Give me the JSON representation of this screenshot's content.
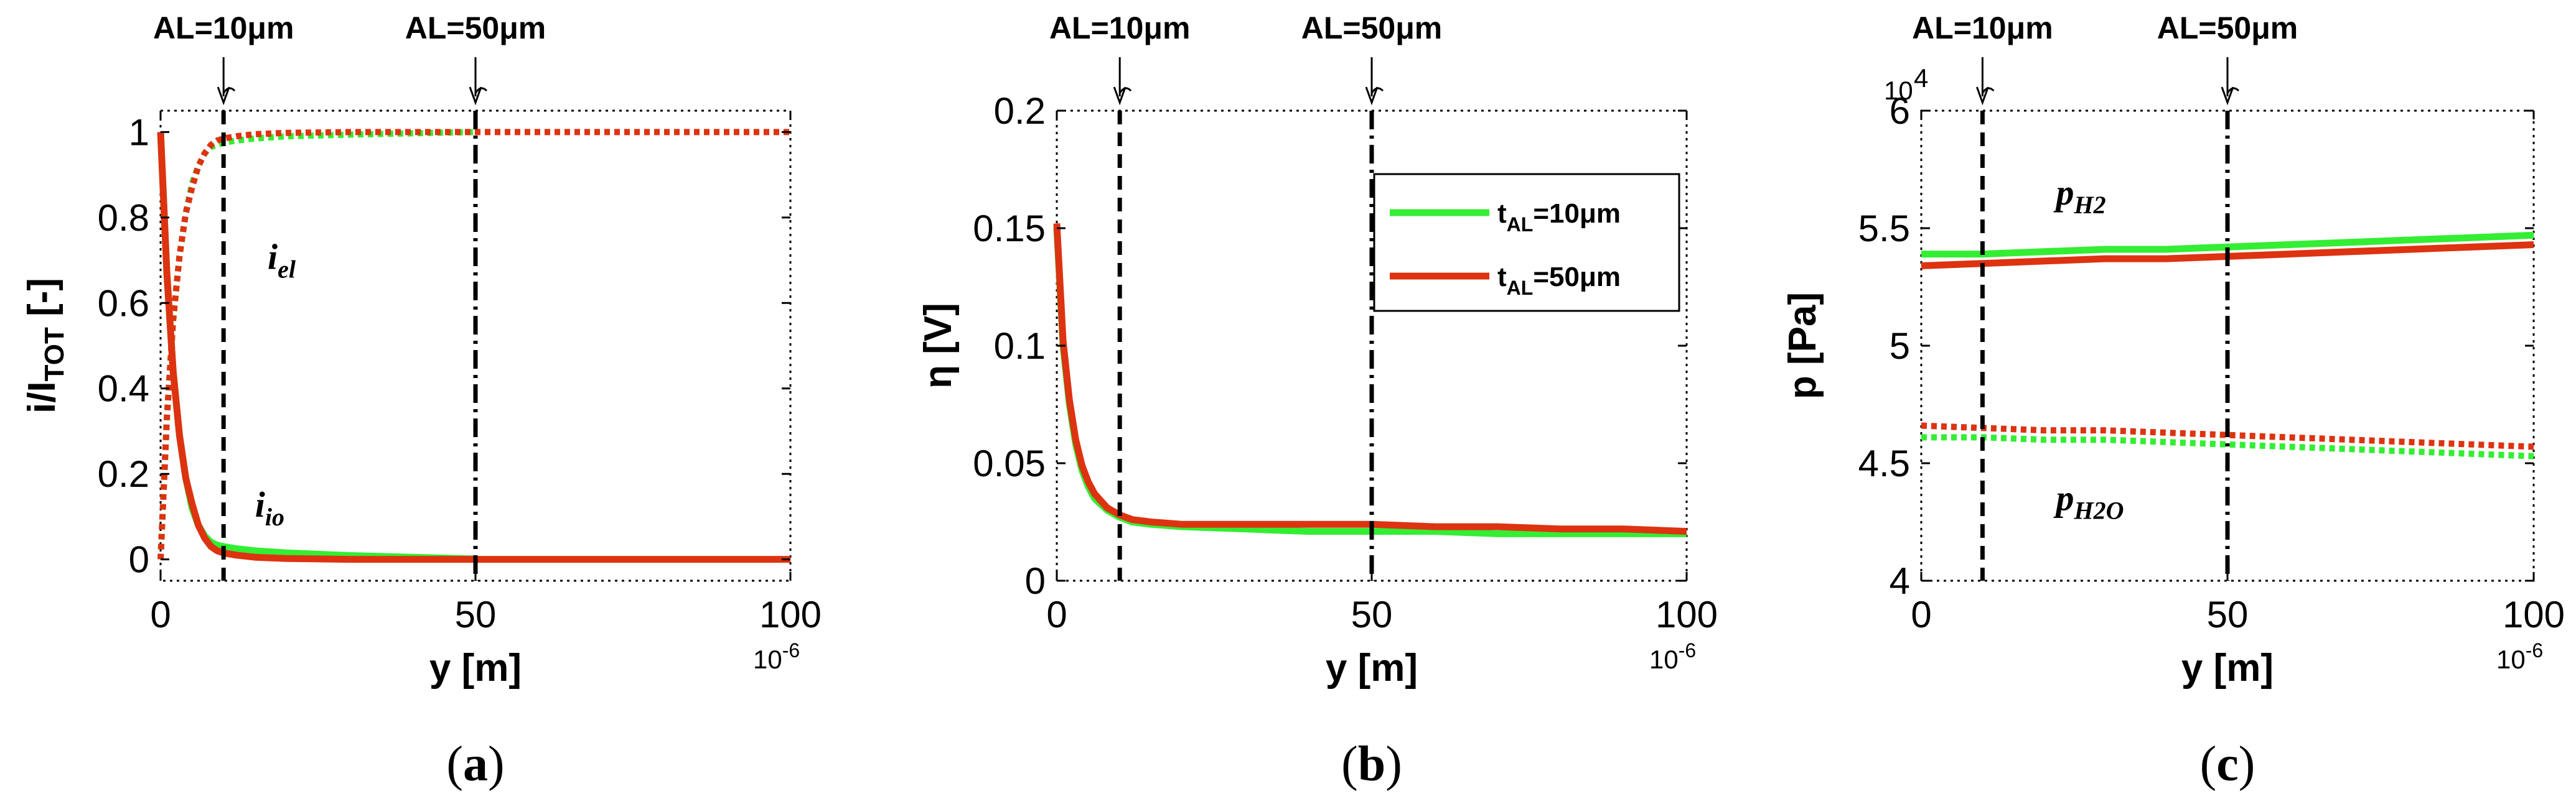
{
  "chart_data": [
    {
      "type": "line",
      "panel_label": "(a)",
      "xlabel": "y [m]",
      "x_exponent": "10-6",
      "ylabel": "i/I_TOT [-]",
      "ylabel_main": "i/I",
      "ylabel_sub": "TOT",
      "ylabel_tail": " [-]",
      "xlim": [
        0,
        100
      ],
      "ylim": [
        -0.05,
        1.05
      ],
      "xticks": [
        0,
        50,
        100
      ],
      "yticks": [
        0,
        0.2,
        0.4,
        0.6,
        0.8,
        1
      ],
      "ytick_labels": [
        "0",
        "0.2",
        "0.4",
        "0.6",
        "0.8",
        "1"
      ],
      "vlines": [
        {
          "x": 10,
          "label": "AL=10μm",
          "style": "dashed"
        },
        {
          "x": 50,
          "label": "AL=50μm",
          "style": "dashdot"
        }
      ],
      "annotations": [
        {
          "name": "i_el",
          "text_main": "i",
          "text_sub": "el",
          "x": 17,
          "y": 0.68
        },
        {
          "name": "i_io",
          "text_main": "i",
          "text_sub": "io",
          "x": 15,
          "y": 0.1
        }
      ],
      "series": [
        {
          "name": "i_el t_AL=10μm",
          "color": "#33ee33",
          "style": "dotted",
          "x": [
            0,
            1,
            2,
            3,
            4,
            5,
            6,
            7,
            8,
            9,
            10,
            12,
            15,
            20,
            30,
            40,
            50
          ],
          "y": [
            0,
            0.33,
            0.56,
            0.71,
            0.81,
            0.88,
            0.92,
            0.95,
            0.965,
            0.97,
            0.975,
            0.98,
            0.985,
            0.99,
            0.994,
            0.997,
            1.0
          ]
        },
        {
          "name": "i_el t_AL=50μm",
          "color": "#dd3311",
          "style": "dotted",
          "x": [
            0,
            1,
            2,
            3,
            4,
            5,
            6,
            7,
            8,
            9,
            10,
            12,
            15,
            20,
            30,
            50,
            70,
            100
          ],
          "y": [
            0,
            0.33,
            0.56,
            0.71,
            0.81,
            0.87,
            0.92,
            0.95,
            0.97,
            0.98,
            0.985,
            0.99,
            0.995,
            0.998,
            1.0,
            1.0,
            1.0,
            1.0
          ]
        },
        {
          "name": "i_io t_AL=10μm",
          "color": "#33ee33",
          "style": "solid",
          "x": [
            0,
            1,
            2,
            3,
            4,
            5,
            6,
            7,
            8,
            9,
            10,
            12,
            15,
            20,
            30,
            40,
            50
          ],
          "y": [
            1,
            0.67,
            0.44,
            0.29,
            0.19,
            0.12,
            0.08,
            0.055,
            0.04,
            0.033,
            0.03,
            0.025,
            0.02,
            0.015,
            0.009,
            0.005,
            0.001
          ]
        },
        {
          "name": "i_io t_AL=50μm",
          "color": "#dd3311",
          "style": "solid",
          "x": [
            0,
            1,
            2,
            3,
            4,
            5,
            6,
            7,
            8,
            9,
            10,
            12,
            15,
            20,
            30,
            50,
            70,
            100
          ],
          "y": [
            1,
            0.67,
            0.44,
            0.29,
            0.19,
            0.13,
            0.08,
            0.05,
            0.03,
            0.02,
            0.015,
            0.01,
            0.005,
            0.002,
            0,
            0,
            0,
            0
          ]
        }
      ]
    },
    {
      "type": "line",
      "panel_label": "(b)",
      "xlabel": "y [m]",
      "x_exponent": "10-6",
      "ylabel": "η [V]",
      "xlim": [
        0,
        100
      ],
      "ylim": [
        0,
        0.2
      ],
      "xticks": [
        0,
        50,
        100
      ],
      "yticks": [
        0,
        0.05,
        0.1,
        0.15,
        0.2
      ],
      "ytick_labels": [
        "0",
        "0.05",
        "0.1",
        "0.15",
        "0.2"
      ],
      "vlines": [
        {
          "x": 10,
          "label": "AL=10μm",
          "style": "dashed"
        },
        {
          "x": 50,
          "label": "AL=50μm",
          "style": "dashdot"
        }
      ],
      "legend": {
        "position": "upper-right",
        "entries": [
          {
            "label_main": "t",
            "label_sub": "AL",
            "label_tail": "=10μm",
            "color": "#33ee33"
          },
          {
            "label_main": "t",
            "label_sub": "AL",
            "label_tail": "=50μm",
            "color": "#dd3311"
          }
        ]
      },
      "series": [
        {
          "name": "t_AL=10μm",
          "color": "#33ee33",
          "style": "solid",
          "x": [
            0,
            1,
            2,
            3,
            4,
            5,
            6,
            8,
            10,
            12,
            15,
            20,
            30,
            40,
            50,
            60,
            70,
            80,
            90,
            100
          ],
          "y": [
            0.15,
            0.1,
            0.075,
            0.058,
            0.047,
            0.04,
            0.035,
            0.03,
            0.027,
            0.025,
            0.024,
            0.023,
            0.022,
            0.021,
            0.021,
            0.021,
            0.02,
            0.02,
            0.02,
            0.02
          ]
        },
        {
          "name": "t_AL=50μm",
          "color": "#dd3311",
          "style": "solid",
          "x": [
            0,
            1,
            2,
            3,
            4,
            5,
            6,
            8,
            10,
            12,
            15,
            20,
            30,
            40,
            50,
            60,
            70,
            80,
            90,
            100
          ],
          "y": [
            0.152,
            0.102,
            0.077,
            0.06,
            0.049,
            0.042,
            0.037,
            0.031,
            0.028,
            0.026,
            0.025,
            0.024,
            0.024,
            0.024,
            0.024,
            0.023,
            0.023,
            0.022,
            0.022,
            0.021
          ]
        }
      ]
    },
    {
      "type": "line",
      "panel_label": "(c)",
      "xlabel": "y [m]",
      "x_exponent": "10-6",
      "y_multiplier": "10",
      "y_multiplier_exp": "4",
      "ylabel": "p [Pa]",
      "xlim": [
        0,
        100
      ],
      "ylim": [
        4,
        6
      ],
      "xticks": [
        0,
        50,
        100
      ],
      "yticks": [
        4,
        4.5,
        5,
        5.5,
        6
      ],
      "ytick_labels": [
        "4",
        "4.5",
        "5",
        "5.5",
        "6"
      ],
      "vlines": [
        {
          "x": 10,
          "label": "AL=10μm",
          "style": "dashed"
        },
        {
          "x": 50,
          "label": "AL=50μm",
          "style": "dashdot"
        }
      ],
      "annotations": [
        {
          "name": "p_H2",
          "text_main": "p",
          "text_sub": "H2",
          "x": 22,
          "y": 5.6
        },
        {
          "name": "p_H2O",
          "text_main": "p",
          "text_sub": "H2O",
          "x": 22,
          "y": 4.3
        }
      ],
      "series": [
        {
          "name": "p_H2 t_AL=10μm",
          "color": "#33ee33",
          "style": "solid",
          "x": [
            0,
            10,
            20,
            30,
            40,
            50,
            60,
            70,
            80,
            90,
            100
          ],
          "y": [
            5.39,
            5.39,
            5.4,
            5.41,
            5.41,
            5.42,
            5.43,
            5.44,
            5.45,
            5.46,
            5.47
          ]
        },
        {
          "name": "p_H2 t_AL=50μm",
          "color": "#dd3311",
          "style": "solid",
          "x": [
            0,
            10,
            20,
            30,
            40,
            50,
            60,
            70,
            80,
            90,
            100
          ],
          "y": [
            5.34,
            5.35,
            5.36,
            5.37,
            5.37,
            5.38,
            5.39,
            5.4,
            5.41,
            5.42,
            5.43
          ]
        },
        {
          "name": "p_H2O t_AL=10μm",
          "color": "#33ee33",
          "style": "dotted",
          "x": [
            0,
            10,
            20,
            30,
            40,
            50,
            60,
            70,
            80,
            90,
            100
          ],
          "y": [
            4.61,
            4.61,
            4.6,
            4.6,
            4.59,
            4.58,
            4.57,
            4.56,
            4.55,
            4.54,
            4.53
          ]
        },
        {
          "name": "p_H2O t_AL=50μm",
          "color": "#dd3311",
          "style": "dotted",
          "x": [
            0,
            10,
            20,
            30,
            40,
            50,
            60,
            70,
            80,
            90,
            100
          ],
          "y": [
            4.66,
            4.65,
            4.64,
            4.64,
            4.63,
            4.62,
            4.61,
            4.6,
            4.59,
            4.58,
            4.57
          ]
        }
      ]
    }
  ]
}
